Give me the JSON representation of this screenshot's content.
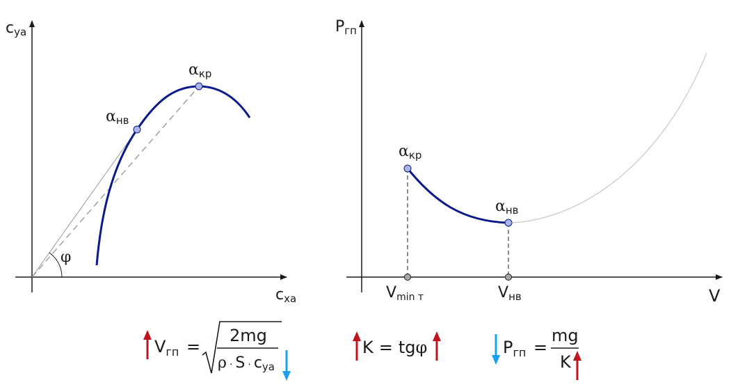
{
  "left_chart": {
    "y_axis": {
      "base": "c",
      "sub": "ya"
    },
    "x_axis": {
      "base": "c",
      "sub": "xa"
    },
    "angle_label": "φ",
    "point_crit": {
      "base": "α",
      "sub": "кр"
    },
    "point_best": {
      "base": "α",
      "sub": "нв"
    }
  },
  "right_chart": {
    "y_axis": {
      "base": "P",
      "sub": "гп"
    },
    "x_axis": "V",
    "point_crit": {
      "base": "α",
      "sub": "кр"
    },
    "point_best": {
      "base": "α",
      "sub": "нв"
    },
    "tick_vmin": {
      "base": "V",
      "sub": "min т"
    },
    "tick_vnv": {
      "base": "V",
      "sub": "нв"
    }
  },
  "formulas": {
    "f1": {
      "lhs_base": "V",
      "lhs_sub": "гп",
      "eq": "=",
      "numerator": "2mg",
      "den_rho": "ρ",
      "den_S": "S",
      "den_c": "c",
      "den_c_sub": "ya"
    },
    "f2": {
      "K": "K",
      "eq": "=",
      "rhs": "tg",
      "phi": "φ"
    },
    "f3": {
      "lhs_base": "P",
      "lhs_sub": "гп",
      "eq": "=",
      "numerator": "mg",
      "denominator": "K"
    }
  },
  "colors": {
    "curve": "#0a1a8c",
    "axis": "#1a1a1a",
    "arrow_up": "#c0141c",
    "arrow_down": "#1aa0ee",
    "point_fill": "#aab4e6",
    "gray": "#9a9a9a"
  }
}
